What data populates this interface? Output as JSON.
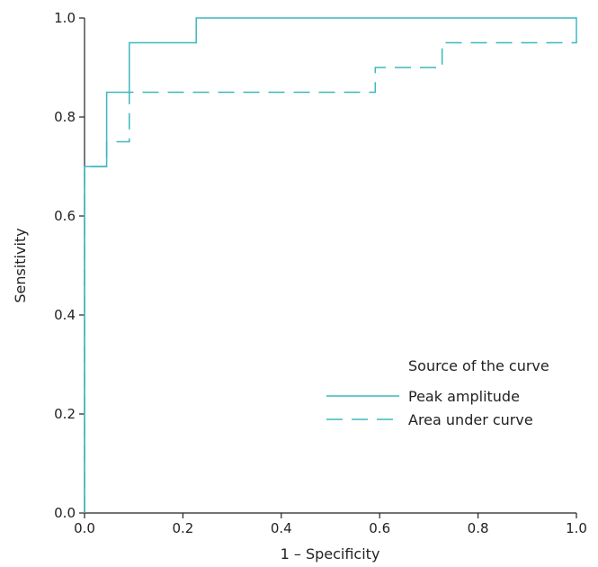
{
  "chart_data": {
    "type": "line",
    "title": "",
    "xlabel": "1 – Specificity",
    "ylabel": "Sensitivity",
    "xlim": [
      0,
      1
    ],
    "ylim": [
      0,
      1
    ],
    "x_ticks": [
      "0.0",
      "0.2",
      "0.4",
      "0.6",
      "0.8",
      "1.0"
    ],
    "y_ticks": [
      "0.0",
      "0.2",
      "0.4",
      "0.6",
      "0.8",
      "1.0"
    ],
    "grid": false,
    "legend": {
      "title": "Source of the curve",
      "placement": "bottom-right"
    },
    "series": [
      {
        "name": "Peak amplitude",
        "style": "solid",
        "color": "#3bb8c0",
        "x": [
          0,
          0,
          0.045,
          0.045,
          0.091,
          0.091,
          0.227,
          0.227,
          1.0,
          1.0
        ],
        "y": [
          0,
          0.7,
          0.7,
          0.85,
          0.85,
          0.95,
          0.95,
          1.0,
          1.0,
          0.97
        ]
      },
      {
        "name": "Area under curve",
        "style": "dashed",
        "color": "#3bb8c0",
        "x": [
          0,
          0,
          0.045,
          0.045,
          0.091,
          0.091,
          0.591,
          0.591,
          0.727,
          0.727,
          1.0,
          1.0
        ],
        "y": [
          0,
          0.7,
          0.7,
          0.75,
          0.75,
          0.85,
          0.85,
          0.9,
          0.9,
          0.95,
          0.95,
          0.97
        ]
      }
    ]
  }
}
